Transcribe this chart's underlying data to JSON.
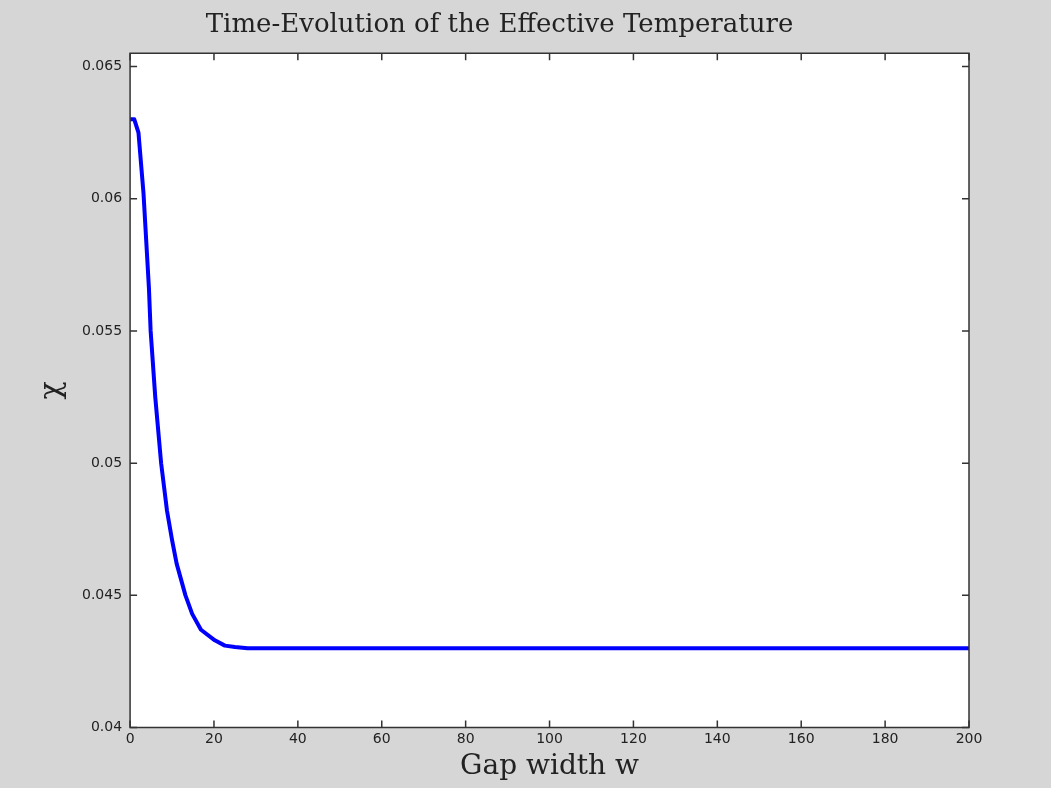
{
  "chart_data": {
    "type": "line",
    "title": "Time-Evolution of the Effective Temperature",
    "xlabel": "Gap width w",
    "ylabel": "χ",
    "x": [
      0,
      1,
      2,
      3.2,
      4.5,
      4.9,
      6,
      7.4,
      8.8,
      10,
      11.1,
      13.2,
      14.8,
      16.9,
      20.2,
      22.6,
      25,
      28,
      50,
      100,
      150,
      200
    ],
    "series": [
      {
        "color": "#0000ff",
        "values": [
          0.063,
          0.063,
          0.0625,
          0.0602,
          0.0566,
          0.055,
          0.0525,
          0.05,
          0.0482,
          0.0471,
          0.0462,
          0.045,
          0.0443,
          0.0437,
          0.0433,
          0.0431,
          0.04305,
          0.043,
          0.043,
          0.043,
          0.043,
          0.043
        ]
      }
    ],
    "xlim": [
      0,
      200
    ],
    "xticks": [
      0,
      20,
      40,
      60,
      80,
      100,
      120,
      140,
      160,
      180,
      200
    ],
    "ylim": [
      0.04,
      0.0655
    ],
    "yticks": [
      0.04,
      0.045,
      0.05,
      0.055,
      0.06,
      0.065
    ],
    "grid": false,
    "legend": false,
    "marker": "none",
    "line_style": "solid"
  }
}
